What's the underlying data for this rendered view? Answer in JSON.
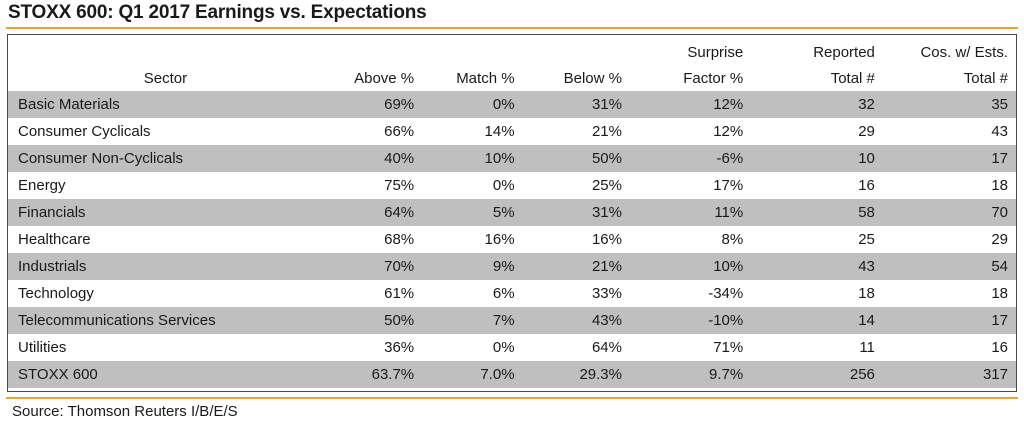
{
  "title": "STOXX 600: Q1 2017 Earnings vs. Expectations",
  "source": "Source: Thomson Reuters I/B/E/S",
  "colors": {
    "accent_rule": "#f0a030",
    "row_shade": "#bfbfbf",
    "border": "#4a4a4a"
  },
  "chart_data": {
    "type": "table",
    "title": "STOXX 600: Q1 2017 Earnings vs. Expectations",
    "header_top": [
      "",
      "",
      "",
      "",
      "Surprise",
      "Reported",
      "Cos. w/ Ests."
    ],
    "header": [
      "Sector",
      "Above %",
      "Match %",
      "Below %",
      "Factor %",
      "Total #",
      "Total #"
    ],
    "rows": [
      [
        "Basic Materials",
        "69%",
        "0%",
        "31%",
        "12%",
        "32",
        "35"
      ],
      [
        "Consumer Cyclicals",
        "66%",
        "14%",
        "21%",
        "12%",
        "29",
        "43"
      ],
      [
        "Consumer Non-Cyclicals",
        "40%",
        "10%",
        "50%",
        "-6%",
        "10",
        "17"
      ],
      [
        "Energy",
        "75%",
        "0%",
        "25%",
        "17%",
        "16",
        "18"
      ],
      [
        "Financials",
        "64%",
        "5%",
        "31%",
        "11%",
        "58",
        "70"
      ],
      [
        "Healthcare",
        "68%",
        "16%",
        "16%",
        "8%",
        "25",
        "29"
      ],
      [
        "Industrials",
        "70%",
        "9%",
        "21%",
        "10%",
        "43",
        "54"
      ],
      [
        "Technology",
        "61%",
        "6%",
        "33%",
        "-34%",
        "18",
        "18"
      ],
      [
        "Telecommunications Services",
        "50%",
        "7%",
        "43%",
        "-10%",
        "14",
        "17"
      ],
      [
        "Utilities",
        "36%",
        "0%",
        "64%",
        "71%",
        "11",
        "16"
      ]
    ],
    "total": [
      "STOXX 600",
      "63.7%",
      "7.0%",
      "29.3%",
      "9.7%",
      "256",
      "317"
    ]
  }
}
